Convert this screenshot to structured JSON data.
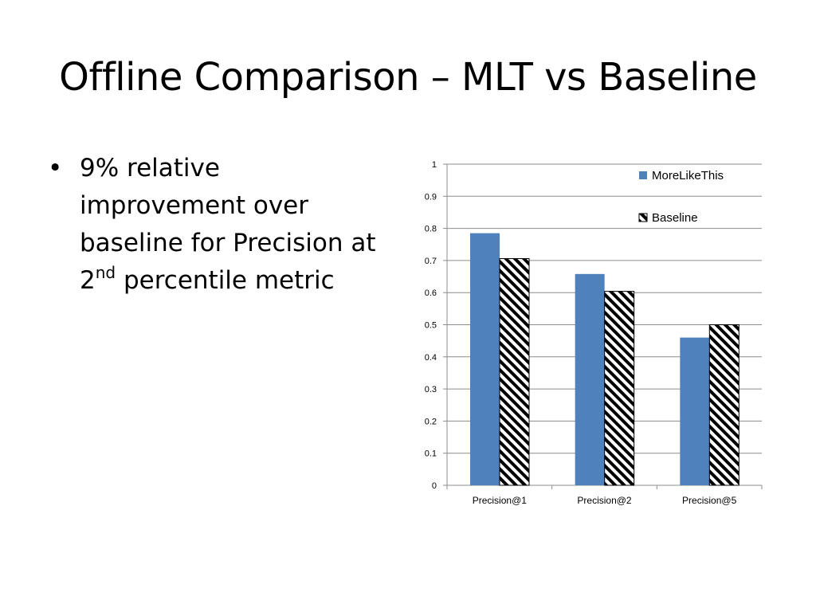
{
  "slide": {
    "title": "Offline Comparison – MLT vs Baseline",
    "bullet": {
      "symbol": "•",
      "line1": "9% relative",
      "line2": "improvement over",
      "line3": "baseline for Precision at",
      "line4_pre": "2",
      "line4_sup": "nd",
      "line4_post": " percentile metric"
    }
  },
  "chart_data": {
    "type": "bar",
    "categories": [
      "Precision@1",
      "Precision@2",
      "Precision@5"
    ],
    "series": [
      {
        "name": "MoreLikeThis",
        "values": [
          0.785,
          0.658,
          0.46
        ],
        "color": "#4f81bd",
        "pattern": "solid"
      },
      {
        "name": "Baseline",
        "values": [
          0.706,
          0.604,
          0.5
        ],
        "color": "#000000",
        "pattern": "diagonal-hatch"
      }
    ],
    "ylim": [
      0,
      1
    ],
    "yticks": [
      0,
      0.1,
      0.2,
      0.3,
      0.4,
      0.5,
      0.6,
      0.7,
      0.8,
      0.9,
      1
    ],
    "ytick_labels": [
      "0",
      "0.1",
      "0.2",
      "0.3",
      "0.4",
      "0.5",
      "0.6",
      "0.7",
      "0.8",
      "0.9",
      "1"
    ],
    "grid": true,
    "legend_position": "top-right",
    "title": "",
    "xlabel": "",
    "ylabel": ""
  }
}
